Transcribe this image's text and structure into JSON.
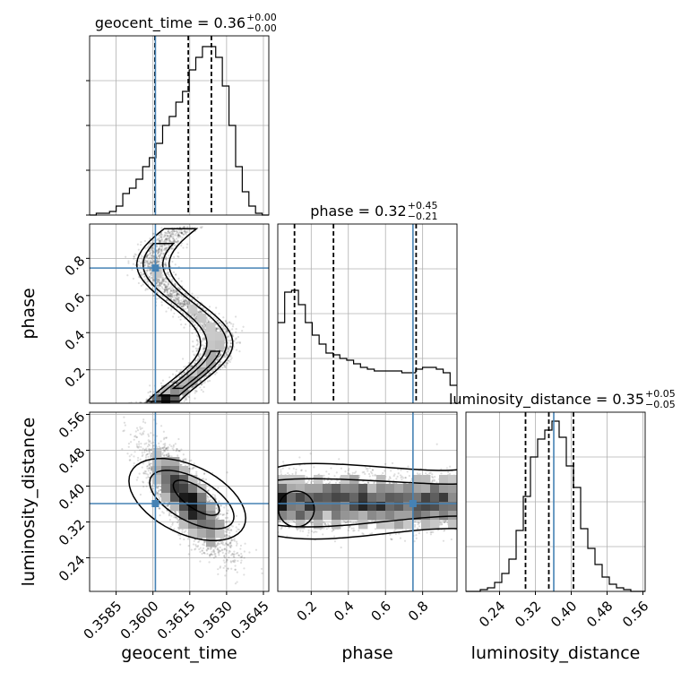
{
  "chart_data": {
    "type": "corner",
    "parameters": [
      "geocent_time",
      "phase",
      "luminosity_distance"
    ],
    "titles": [
      {
        "param": "geocent_time",
        "median": "0.36",
        "plus": "+0.00",
        "minus": "−0.00"
      },
      {
        "param": "phase",
        "median": "0.32",
        "plus": "+0.45",
        "minus": "−0.21"
      },
      {
        "param": "luminosity_distance",
        "median": "0.35",
        "plus": "+0.05",
        "minus": "−0.05"
      }
    ],
    "axes": {
      "geocent_time": {
        "range": [
          0.35742,
          0.36472
        ],
        "ticks": [
          "0.3585",
          "0.3600",
          "0.3615",
          "0.3630",
          "0.3645"
        ],
        "tickvals": [
          0.3585,
          0.36,
          0.3615,
          0.363,
          0.3645
        ]
      },
      "phase": {
        "range": [
          0.02,
          0.985
        ],
        "ticks": [
          "0.2",
          "0.4",
          "0.6",
          "0.8"
        ],
        "tickvals": [
          0.2,
          0.4,
          0.6,
          0.8
        ]
      },
      "luminosity_distance": {
        "range": [
          0.165,
          0.565
        ],
        "ticks": [
          "0.24",
          "0.32",
          "0.40",
          "0.48",
          "0.56"
        ],
        "tickvals": [
          0.24,
          0.32,
          0.4,
          0.48,
          0.56
        ]
      }
    },
    "truths": {
      "geocent_time": 0.3601,
      "phase": 0.748,
      "luminosity_distance": 0.361
    },
    "truth_color": "#4682b4",
    "quantiles": {
      "geocent_time": [
        0.36008,
        0.36144,
        0.36238
      ],
      "phase": [
        0.11,
        0.32,
        0.765
      ],
      "luminosity_distance": [
        0.298,
        0.35,
        0.405
      ]
    },
    "histograms": {
      "geocent_time": [
        0.0,
        0.01,
        0.01,
        0.02,
        0.05,
        0.12,
        0.15,
        0.2,
        0.27,
        0.32,
        0.4,
        0.5,
        0.55,
        0.63,
        0.69,
        0.81,
        0.88,
        0.94,
        0.94,
        0.88,
        0.72,
        0.5,
        0.27,
        0.13,
        0.05,
        0.01,
        0.0
      ],
      "phase": [
        0.45,
        0.62,
        0.63,
        0.55,
        0.45,
        0.38,
        0.33,
        0.28,
        0.27,
        0.25,
        0.24,
        0.22,
        0.2,
        0.19,
        0.18,
        0.18,
        0.18,
        0.18,
        0.17,
        0.17,
        0.19,
        0.2,
        0.2,
        0.19,
        0.17,
        0.1
      ],
      "luminosity_distance": [
        0.0,
        0.0,
        0.01,
        0.02,
        0.05,
        0.1,
        0.18,
        0.34,
        0.53,
        0.75,
        0.85,
        0.9,
        0.95,
        0.86,
        0.7,
        0.58,
        0.35,
        0.24,
        0.15,
        0.08,
        0.04,
        0.02,
        0.01,
        0.0,
        0.0
      ]
    },
    "grid": true,
    "lines_color": "#000000",
    "density_color": "#000000"
  }
}
